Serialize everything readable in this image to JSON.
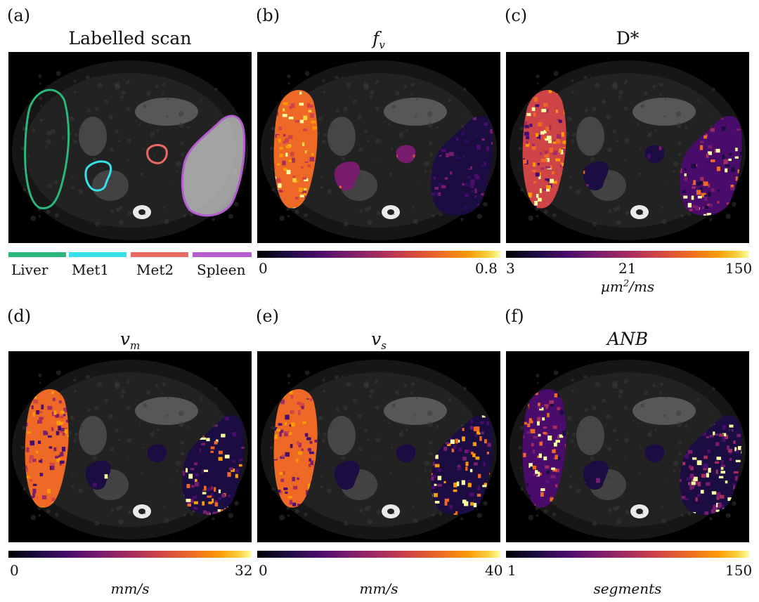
{
  "panels": {
    "a": {
      "label": "(a)",
      "title": "Labelled scan"
    },
    "b": {
      "label": "(b)",
      "title": "f",
      "title_sub": "v"
    },
    "c": {
      "label": "(c)",
      "title": "D*"
    },
    "d": {
      "label": "(d)",
      "title": "v",
      "title_sub": "m"
    },
    "e": {
      "label": "(e)",
      "title": "v",
      "title_sub": "s"
    },
    "f": {
      "label": "(f)",
      "title": "ANB"
    }
  },
  "legend": [
    {
      "name": "Liver",
      "color": "#2bb67a"
    },
    {
      "name": "Met1",
      "color": "#38e0ea"
    },
    {
      "name": "Met2",
      "color": "#e86a63"
    },
    {
      "name": "Spleen",
      "color": "#b45cd0"
    }
  ],
  "colorbars": {
    "b": {
      "min": "0",
      "max": "0.8"
    },
    "c": {
      "min": "3",
      "mid": "21",
      "max": "150",
      "unit": "µm",
      "unit_sup": "2",
      "unit_rest": "/ms"
    },
    "d": {
      "min": "0",
      "max": "32",
      "unit": "mm/s"
    },
    "e": {
      "min": "0",
      "max": "40",
      "unit": "mm/s"
    },
    "f": {
      "min": "1",
      "max": "150",
      "unit": "segments"
    }
  },
  "colors": {
    "colormap": "inferno",
    "background": "#000000"
  }
}
